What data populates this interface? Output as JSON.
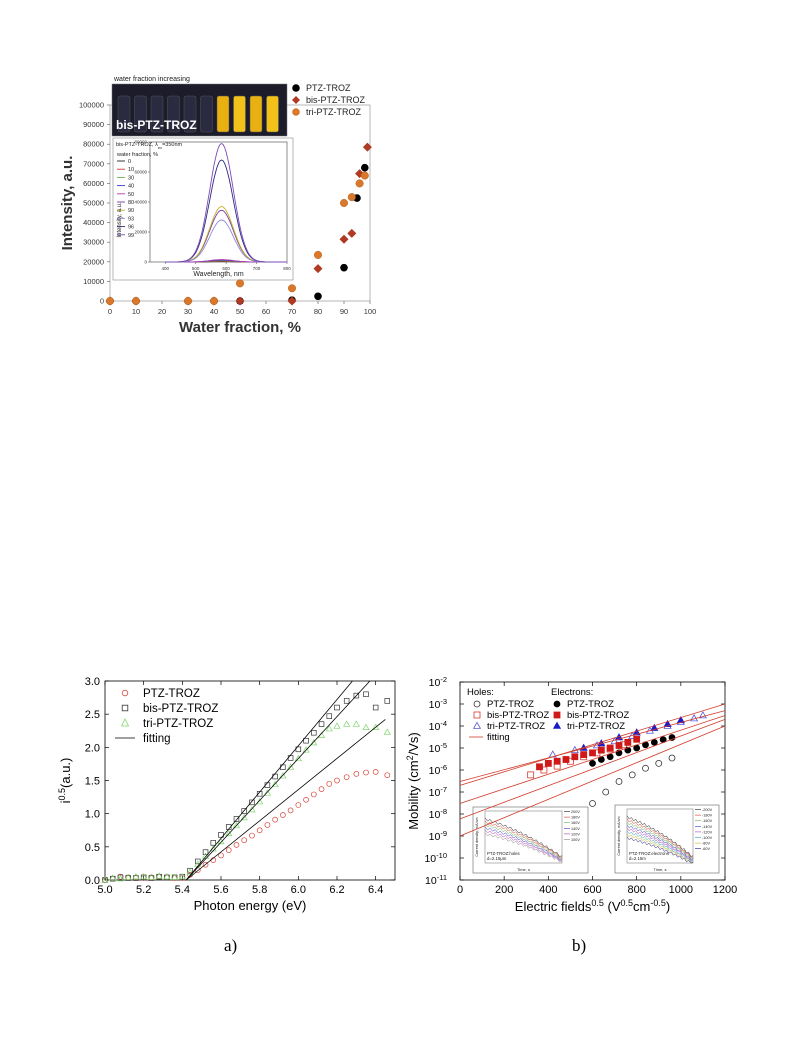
{
  "panel_labels": [
    "a)",
    "b)"
  ],
  "chart_data": [
    {
      "type": "scatter",
      "xlabel": "Water fraction, %",
      "ylabel": "Intensity, a.u.",
      "xlim": [
        0,
        100
      ],
      "ylim": [
        0,
        100000
      ],
      "x_ticks": [
        "0",
        "10",
        "20",
        "30",
        "40",
        "50",
        "60",
        "70",
        "80",
        "90",
        "100"
      ],
      "y_ticks": [
        "0",
        "10000",
        "20000",
        "30000",
        "40000",
        "50000",
        "60000",
        "70000",
        "80000",
        "90000",
        "100000"
      ],
      "legend_position": "top-right outside",
      "colors": {
        "PTZ-TROZ": "#000000",
        "bis-PTZ-TROZ": "#b03a22",
        "tri-PTZ-TROZ": "#d9782b"
      },
      "series": [
        {
          "name": "PTZ-TROZ",
          "marker": "circle",
          "points": [
            [
              0,
              0
            ],
            [
              10,
              0
            ],
            [
              30,
              0
            ],
            [
              40,
              0
            ],
            [
              50,
              0
            ],
            [
              70,
              400
            ],
            [
              80,
              2400
            ],
            [
              90,
              17000
            ],
            [
              95,
              52500
            ],
            [
              98,
              68000
            ]
          ]
        },
        {
          "name": "bis-PTZ-TROZ",
          "marker": "diamond",
          "points": [
            [
              0,
              0
            ],
            [
              10,
              0
            ],
            [
              30,
              0
            ],
            [
              40,
              0
            ],
            [
              50,
              0
            ],
            [
              70,
              0
            ],
            [
              80,
              16500
            ],
            [
              90,
              31500
            ],
            [
              93,
              34500
            ],
            [
              96,
              65000
            ],
            [
              99,
              78500
            ]
          ]
        },
        {
          "name": "tri-PTZ-TROZ",
          "marker": "sphere",
          "points": [
            [
              0,
              0
            ],
            [
              10,
              0
            ],
            [
              30,
              0
            ],
            [
              40,
              0
            ],
            [
              50,
              9000
            ],
            [
              70,
              6500
            ],
            [
              80,
              23500
            ],
            [
              90,
              50000
            ],
            [
              93,
              53000
            ],
            [
              96,
              60000
            ],
            [
              98,
              64000
            ]
          ]
        }
      ],
      "photo_inset": {
        "caption": "water fraction increasing",
        "label": "bis-PTZ-TROZ"
      },
      "inset": {
        "type": "line",
        "title_prefix": "bis-PTZ-TROZ, λ",
        "title_sub": "ex",
        "title_suffix": "=350nm",
        "legend_title": "water fraction, %",
        "xlabel": "Wavelength, nm",
        "ylabel": "Intensity, a.u.",
        "xlim": [
          350,
          800
        ],
        "ylim": [
          0,
          80000
        ],
        "x_ticks": [
          "400",
          "500",
          "600",
          "700",
          "800"
        ],
        "y_ticks": [
          "0",
          "20000",
          "40000",
          "60000",
          "80000"
        ],
        "series": [
          {
            "name": "0",
            "color": "#222222",
            "peak": 300
          },
          {
            "name": "10",
            "color": "#d23a2a",
            "peak": 500
          },
          {
            "name": "30",
            "color": "#6ab04c",
            "peak": 800
          },
          {
            "name": "40",
            "color": "#3a3ac8",
            "peak": 1200
          },
          {
            "name": "50",
            "color": "#b23ab2",
            "peak": 1600
          },
          {
            "name": "80",
            "color": "#7a3aa8",
            "peak": 34500
          },
          {
            "name": "90",
            "color": "#c8b020",
            "peak": 37000
          },
          {
            "name": "93",
            "color": "#8a8ad8",
            "peak": 28000
          },
          {
            "name": "96",
            "color": "#2a2a80",
            "peak": 68000
          },
          {
            "name": "99",
            "color": "#7a4ab8",
            "peak": 79000
          }
        ]
      }
    },
    {
      "type": "scatter",
      "xlabel": "Photon energy (eV)",
      "ylabel_base": "i",
      "ylabel_sup": "0.5",
      "ylabel_suffix": "(a.u.)",
      "xlim": [
        5.0,
        6.5
      ],
      "ylim": [
        0,
        3.0
      ],
      "x_ticks": [
        "5.0",
        "5.2",
        "5.4",
        "5.6",
        "5.8",
        "6.0",
        "6.2",
        "6.4"
      ],
      "y_ticks": [
        "0.0",
        "0.5",
        "1.0",
        "1.5",
        "2.0",
        "2.5",
        "3.0"
      ],
      "legend_position": "top-left",
      "series": [
        {
          "name": "PTZ-TROZ",
          "marker": "circle",
          "color": "#d9473b",
          "x": [
            5.0,
            5.04,
            5.08,
            5.12,
            5.16,
            5.2,
            5.24,
            5.28,
            5.32,
            5.36,
            5.4,
            5.44,
            5.48,
            5.52,
            5.56,
            5.6,
            5.64,
            5.68,
            5.72,
            5.76,
            5.8,
            5.84,
            5.88,
            5.92,
            5.96,
            6.0,
            6.04,
            6.08,
            6.12,
            6.16,
            6.2,
            6.25,
            6.3,
            6.35,
            6.4,
            6.46
          ],
          "y": [
            0.0,
            0.02,
            0.05,
            0.04,
            0.03,
            0.03,
            0.04,
            0.05,
            0.04,
            0.03,
            0.03,
            0.08,
            0.15,
            0.23,
            0.3,
            0.37,
            0.45,
            0.53,
            0.6,
            0.67,
            0.75,
            0.83,
            0.91,
            0.98,
            1.05,
            1.13,
            1.21,
            1.29,
            1.37,
            1.45,
            1.5,
            1.55,
            1.6,
            1.62,
            1.63,
            1.58
          ]
        },
        {
          "name": "bis-PTZ-TROZ",
          "marker": "square",
          "color": "#333333",
          "x": [
            5.0,
            5.04,
            5.08,
            5.12,
            5.16,
            5.2,
            5.24,
            5.28,
            5.32,
            5.36,
            5.4,
            5.44,
            5.48,
            5.52,
            5.56,
            5.6,
            5.64,
            5.68,
            5.72,
            5.76,
            5.8,
            5.84,
            5.88,
            5.92,
            5.96,
            6.0,
            6.04,
            6.08,
            6.12,
            6.16,
            6.2,
            6.25,
            6.3,
            6.35,
            6.4,
            6.46
          ],
          "y": [
            0.0,
            0.02,
            0.04,
            0.03,
            0.03,
            0.04,
            0.03,
            0.05,
            0.04,
            0.04,
            0.05,
            0.14,
            0.28,
            0.42,
            0.56,
            0.68,
            0.8,
            0.92,
            1.04,
            1.17,
            1.3,
            1.43,
            1.56,
            1.7,
            1.84,
            1.97,
            2.1,
            2.22,
            2.35,
            2.47,
            2.6,
            2.7,
            2.78,
            2.8,
            2.6,
            2.7
          ]
        },
        {
          "name": "tri-PTZ-TROZ",
          "marker": "triangle",
          "color": "#7ed66a",
          "x": [
            5.0,
            5.04,
            5.08,
            5.12,
            5.16,
            5.2,
            5.24,
            5.28,
            5.32,
            5.36,
            5.4,
            5.44,
            5.48,
            5.52,
            5.56,
            5.6,
            5.64,
            5.68,
            5.72,
            5.76,
            5.8,
            5.84,
            5.88,
            5.92,
            5.96,
            6.0,
            6.04,
            6.08,
            6.12,
            6.16,
            6.2,
            6.25,
            6.3,
            6.35,
            6.4,
            6.46
          ],
          "y": [
            0.0,
            0.03,
            0.02,
            0.04,
            0.05,
            0.05,
            0.04,
            0.06,
            0.05,
            0.04,
            0.05,
            0.12,
            0.24,
            0.36,
            0.47,
            0.58,
            0.7,
            0.82,
            0.94,
            1.06,
            1.18,
            1.31,
            1.44,
            1.57,
            1.7,
            1.83,
            1.96,
            2.07,
            2.18,
            2.28,
            2.32,
            2.35,
            2.35,
            2.3,
            2.3,
            2.23
          ]
        },
        {
          "name": "fitting",
          "marker": "line",
          "color": "#000000",
          "lines": [
            [
              [
                5.42,
                0.0
              ],
              [
                6.45,
                2.42
              ]
            ],
            [
              [
                5.42,
                0.0
              ],
              [
                6.28,
                3.0
              ]
            ],
            [
              [
                5.42,
                0.0
              ],
              [
                6.37,
                3.0
              ]
            ]
          ]
        }
      ]
    },
    {
      "type": "scatter",
      "xlabel_base": "Electric fields",
      "xlabel_sup1": "0.5",
      "xlabel_mid": " (V",
      "xlabel_sup2": "0.5",
      "xlabel_mid2": "cm",
      "xlabel_sup3": "-0.5",
      "xlabel_end": ")",
      "ylabel_base": "Mobility (cm",
      "ylabel_sup": "2",
      "ylabel_end": "/Vs)",
      "xlim": [
        0,
        1200
      ],
      "ylim_log": [
        -11,
        -2
      ],
      "y_scale": "log",
      "x_ticks": [
        "0",
        "200",
        "400",
        "600",
        "800",
        "1000",
        "1200"
      ],
      "y_tick_exponents": [
        "-11",
        "-10",
        "-9",
        "-8",
        "-7",
        "-6",
        "-5",
        "-4",
        "-3",
        "-2"
      ],
      "legend_holes_title": "Holes:",
      "legend_electrons_title": "Electrons:",
      "series": [
        {
          "name": "PTZ-TROZ",
          "group": "holes",
          "marker": "circle-open",
          "color": "#333333",
          "x": [
            600,
            660,
            720,
            780,
            840,
            900,
            960
          ],
          "y": [
            3e-08,
            1e-07,
            3e-07,
            6e-07,
            1.2e-06,
            2e-06,
            3.5e-06
          ]
        },
        {
          "name": "bis-PTZ-TROZ",
          "group": "holes",
          "marker": "square-open",
          "color": "#d23a2a",
          "x": [
            320,
            380,
            440,
            500,
            560,
            620,
            680,
            740
          ],
          "y": [
            6e-07,
            1e-06,
            1.5e-06,
            2.5e-06,
            4e-06,
            6e-06,
            9e-06,
            1.4e-05
          ]
        },
        {
          "name": "tri-PTZ-TROZ",
          "group": "holes",
          "marker": "triangle-open",
          "color": "#5a5ad8",
          "x": [
            420,
            520,
            620,
            700,
            780,
            860,
            940,
            1000,
            1060,
            1100
          ],
          "y": [
            5e-06,
            8e-06,
            1.3e-05,
            2e-05,
            3.5e-05,
            6e-05,
            0.0001,
            0.00015,
            0.00022,
            0.0003
          ]
        },
        {
          "name": "PTZ-TROZ",
          "group": "electrons",
          "marker": "circle-filled",
          "color": "#000000",
          "x": [
            600,
            640,
            680,
            720,
            760,
            800,
            840,
            880,
            920,
            960
          ],
          "y": [
            2e-06,
            3e-06,
            4e-06,
            6e-06,
            8e-06,
            1e-05,
            1.4e-05,
            1.8e-05,
            2.4e-05,
            3e-05
          ]
        },
        {
          "name": "bis-PTZ-TROZ",
          "group": "electrons",
          "marker": "square-filled",
          "color": "#d01818",
          "x": [
            360,
            400,
            440,
            480,
            520,
            560,
            600,
            640,
            680,
            720,
            760,
            800
          ],
          "y": [
            1.4e-06,
            2e-06,
            2.5e-06,
            3e-06,
            4e-06,
            5e-06,
            6e-06,
            8e-06,
            1e-05,
            1.3e-05,
            1.8e-05,
            2.5e-05
          ]
        },
        {
          "name": "tri-PTZ-TROZ",
          "group": "electrons",
          "marker": "triangle-filled",
          "color": "#1a1ac8",
          "x": [
            560,
            640,
            720,
            800,
            880,
            940,
            1000
          ],
          "y": [
            1e-05,
            1.6e-05,
            3e-05,
            5e-05,
            8e-05,
            0.00012,
            0.00018
          ]
        },
        {
          "name": "fitting",
          "group": "fit",
          "marker": "line",
          "color": "#d23a2a",
          "lines": [
            [
              [
                0,
                2e-07
              ],
              [
                1200,
                0.001
              ]
            ],
            [
              [
                0,
                6e-09
              ],
              [
                1200,
                0.0002
              ]
            ],
            [
              [
                0,
                3e-07
              ],
              [
                1200,
                0.0005
              ]
            ],
            [
              [
                0,
                3e-08
              ],
              [
                1200,
                0.0003
              ]
            ],
            [
              [
                0,
                1e-09
              ],
              [
                1200,
                0.0001
              ]
            ]
          ]
        }
      ],
      "insets": [
        {
          "label1": "PTZ-TROZ:holes",
          "label2": "d=2.15μm",
          "ylabel": "Current density, mA/cm",
          "xlabel": "Time, s",
          "legend": [
            "200V",
            "180V",
            "160V",
            "140V",
            "120V",
            "100V"
          ],
          "colors": [
            "#1f1f1f",
            "#d23a2a",
            "#6ab04c",
            "#3a3ac8",
            "#b23ab2",
            "#888888"
          ]
        },
        {
          "label1": "PTZ-TROZ:electrons",
          "label2": "d=2.15m",
          "ylabel": "Current density, mA/cm",
          "xlabel": "Time, s",
          "legend": [
            "-200V",
            "-180V",
            "-160V",
            "-140V",
            "-120V",
            "-100V",
            "-80V",
            "-60V"
          ],
          "colors": [
            "#1f1f1f",
            "#d23a2a",
            "#6ab04c",
            "#3a3ac8",
            "#b23ab2",
            "#2aa0b0",
            "#c8b020",
            "#1a1a80"
          ]
        }
      ]
    }
  ]
}
